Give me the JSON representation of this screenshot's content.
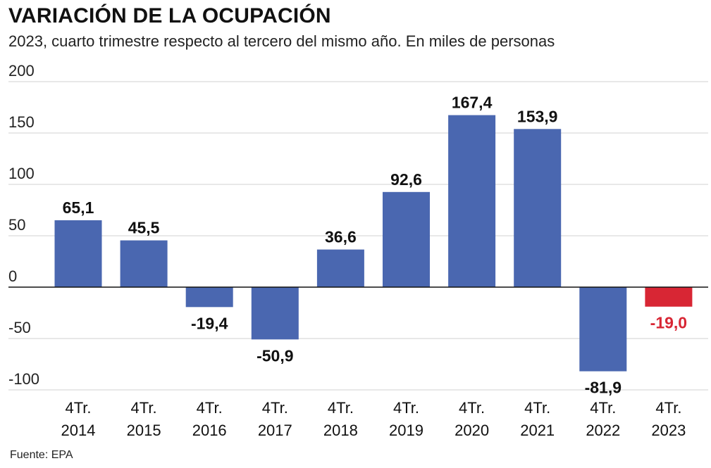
{
  "title": "VARIACIÓN DE LA OCUPACIÓN",
  "subtitle": "2023, cuarto trimestre respecto al tercero del mismo año. En miles de personas",
  "source": "Fuente: EPA",
  "colors": {
    "bar": "#4a67b0",
    "highlight": "#d82634",
    "grid": "#d0d0d0",
    "zero": "#111111"
  },
  "chart_data": {
    "type": "bar",
    "categories": [
      [
        "4Tr.",
        "2014"
      ],
      [
        "4Tr.",
        "2015"
      ],
      [
        "4Tr.",
        "2016"
      ],
      [
        "4Tr.",
        "2017"
      ],
      [
        "4Tr.",
        "2018"
      ],
      [
        "4Tr.",
        "2019"
      ],
      [
        "4Tr.",
        "2020"
      ],
      [
        "4Tr.",
        "2021"
      ],
      [
        "4Tr.",
        "2022"
      ],
      [
        "4Tr.",
        "2023"
      ]
    ],
    "values": [
      65.1,
      45.5,
      -19.4,
      -50.9,
      36.6,
      92.6,
      167.4,
      153.9,
      -81.9,
      -19.0
    ],
    "labels": [
      "65,1",
      "45,5",
      "-19,4",
      "-50,9",
      "36,6",
      "92,6",
      "167,4",
      "153,9",
      "-81,9",
      "-19,0"
    ],
    "highlight_index": 9,
    "yticks": [
      200,
      150,
      100,
      50,
      0,
      -50,
      -100
    ],
    "ylim": [
      -100,
      200
    ],
    "grid": true
  }
}
